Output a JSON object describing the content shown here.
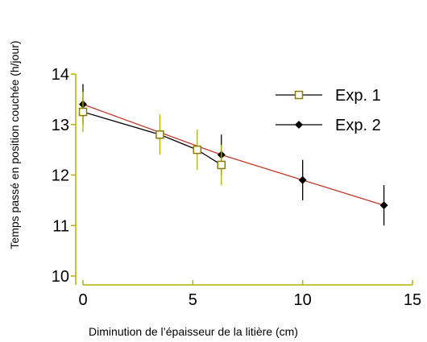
{
  "chart_data": {
    "type": "line",
    "xlabel": "Diminution de l’épaisseur de la litière (cm)",
    "ylabel": "Temps passé en position couchée (h/jour)",
    "xlim": [
      0,
      15
    ],
    "ylim": [
      10,
      14
    ],
    "x_ticks": [
      "0",
      "5",
      "10",
      "15"
    ],
    "y_ticks": [
      "10",
      "11",
      "12",
      "13",
      "14"
    ],
    "grid": false,
    "legend_position": "top-right",
    "series": [
      {
        "name": "Exp. 1",
        "marker": "open-square",
        "line_color": "#000000",
        "error_color": "#b5b200",
        "points": [
          {
            "x": 0,
            "y": 13.25,
            "err": 0.4
          },
          {
            "x": 3.5,
            "y": 12.8,
            "err": 0.4
          },
          {
            "x": 5.2,
            "y": 12.5,
            "err": 0.4
          },
          {
            "x": 6.3,
            "y": 12.2,
            "err": 0.4
          }
        ]
      },
      {
        "name": "Exp. 2",
        "marker": "filled-diamond",
        "line_color": "#c0392b",
        "error_color": "#000000",
        "points": [
          {
            "x": 0,
            "y": 13.4,
            "err": 0.4
          },
          {
            "x": 6.3,
            "y": 12.4,
            "err": 0.4
          },
          {
            "x": 10,
            "y": 11.9,
            "err": 0.4
          },
          {
            "x": 13.7,
            "y": 11.4,
            "err": 0.4
          }
        ]
      }
    ],
    "axis_color": "#b5b200"
  }
}
